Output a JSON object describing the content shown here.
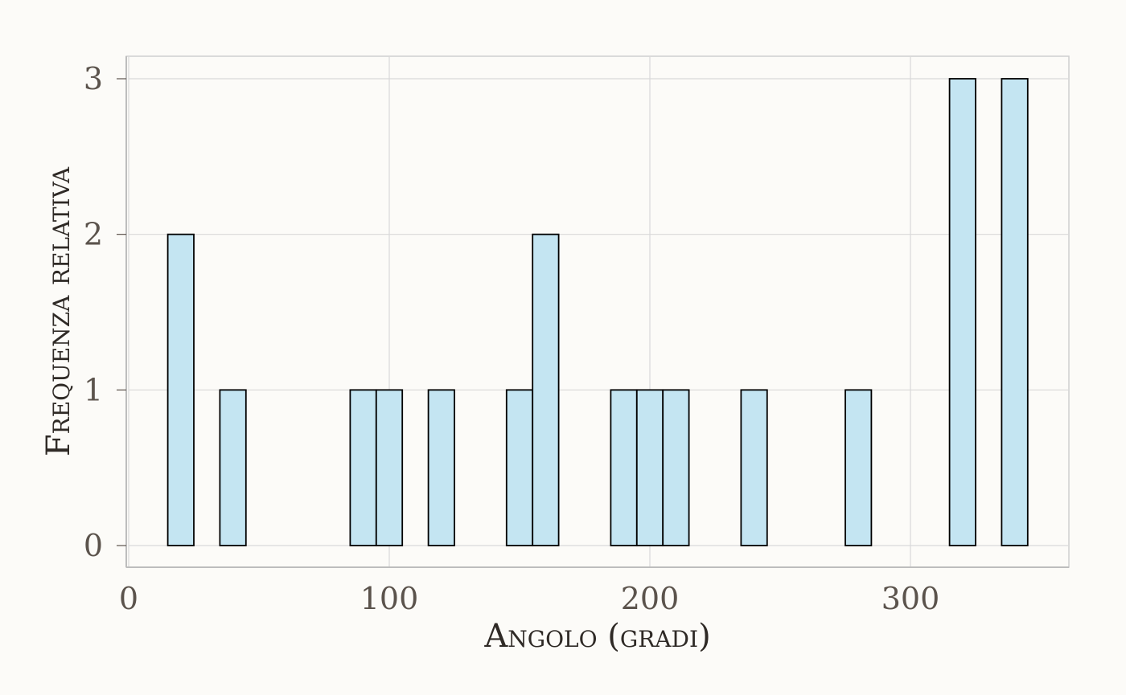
{
  "chart_data": {
    "type": "bar",
    "title": "",
    "xlabel": "Angolo (gradi)",
    "ylabel": "Frequenza relativa",
    "xlim": [
      0,
      360
    ],
    "ylim": [
      0,
      3
    ],
    "x_ticks": [
      0,
      100,
      200,
      300
    ],
    "x_tick_labels": [
      "0",
      "100",
      "200",
      "300"
    ],
    "y_ticks": [
      0,
      1,
      2,
      3
    ],
    "y_tick_labels": [
      "0",
      "1",
      "2",
      "3"
    ],
    "grid": true,
    "bin_width": 10,
    "bins": [
      {
        "x": 20,
        "value": 2
      },
      {
        "x": 30,
        "value": 0
      },
      {
        "x": 40,
        "value": 1
      },
      {
        "x": 50,
        "value": 0
      },
      {
        "x": 60,
        "value": 0
      },
      {
        "x": 70,
        "value": 0
      },
      {
        "x": 80,
        "value": 0
      },
      {
        "x": 90,
        "value": 1
      },
      {
        "x": 100,
        "value": 1
      },
      {
        "x": 110,
        "value": 0
      },
      {
        "x": 120,
        "value": 1
      },
      {
        "x": 130,
        "value": 0
      },
      {
        "x": 140,
        "value": 0
      },
      {
        "x": 150,
        "value": 1
      },
      {
        "x": 160,
        "value": 2
      },
      {
        "x": 170,
        "value": 0
      },
      {
        "x": 180,
        "value": 0
      },
      {
        "x": 190,
        "value": 1
      },
      {
        "x": 200,
        "value": 1
      },
      {
        "x": 210,
        "value": 1
      },
      {
        "x": 220,
        "value": 0
      },
      {
        "x": 230,
        "value": 0
      },
      {
        "x": 240,
        "value": 1
      },
      {
        "x": 250,
        "value": 0
      },
      {
        "x": 260,
        "value": 0
      },
      {
        "x": 270,
        "value": 0
      },
      {
        "x": 280,
        "value": 1
      },
      {
        "x": 290,
        "value": 0
      },
      {
        "x": 300,
        "value": 0
      },
      {
        "x": 310,
        "value": 0
      },
      {
        "x": 320,
        "value": 3
      },
      {
        "x": 330,
        "value": 0
      },
      {
        "x": 340,
        "value": 3
      }
    ],
    "colors": {
      "bar_fill": "#c4e5f2",
      "bar_stroke": "#000000",
      "background": "#fcfbf8"
    }
  }
}
